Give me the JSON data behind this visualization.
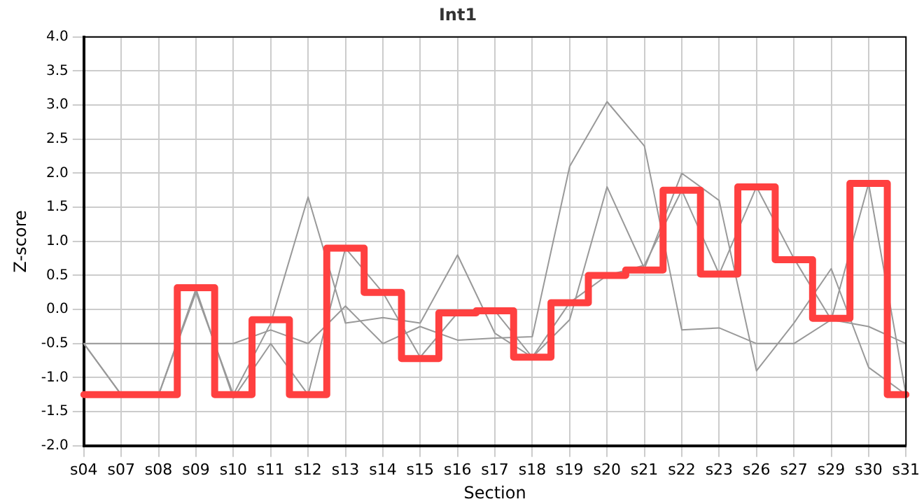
{
  "chart_data": {
    "type": "line",
    "title": "Int1",
    "xlabel": "Section",
    "ylabel": "Z-score",
    "categories": [
      "s04",
      "s07",
      "s08",
      "s09",
      "s10",
      "s11",
      "s12",
      "s13",
      "s14",
      "s15",
      "s16",
      "s17",
      "s18",
      "s19",
      "s20",
      "s21",
      "s22",
      "s23",
      "s26",
      "s27",
      "s29",
      "s30",
      "s31"
    ],
    "series": [
      {
        "type": "line",
        "color": "#999999",
        "values": [
          -0.5,
          -0.5,
          -0.5,
          -0.5,
          -0.5,
          -0.3,
          -0.5,
          0.05,
          -0.5,
          -0.25,
          -0.45,
          -0.42,
          -0.4,
          2.1,
          3.05,
          2.4,
          -0.3,
          -0.27,
          -0.5,
          -0.5,
          -0.15,
          -0.25,
          -0.5
        ]
      },
      {
        "type": "line",
        "color": "#999999",
        "values": [
          -0.5,
          -1.25,
          -1.25,
          0.25,
          -1.25,
          -0.2,
          1.65,
          -0.2,
          -0.12,
          -0.2,
          0.8,
          -0.35,
          -0.7,
          -0.15,
          1.8,
          0.6,
          2.0,
          1.6,
          -0.9,
          -0.2,
          0.6,
          -0.85,
          -1.25
        ]
      },
      {
        "type": "line",
        "color": "#999999",
        "values": [
          -0.5,
          -1.25,
          -1.25,
          0.3,
          -1.3,
          -0.5,
          -1.25,
          0.9,
          0.25,
          -0.7,
          -0.05,
          -0.02,
          -0.7,
          0.1,
          0.5,
          0.65,
          1.75,
          0.52,
          1.8,
          0.75,
          -0.15,
          1.85,
          -1.25
        ]
      },
      {
        "type": "step",
        "color": "#ff4040",
        "values": [
          -1.25,
          -1.25,
          -1.25,
          0.32,
          -1.25,
          -0.15,
          -1.25,
          0.9,
          0.25,
          -0.72,
          -0.05,
          -0.02,
          -0.7,
          0.1,
          0.5,
          0.58,
          1.75,
          0.52,
          1.8,
          0.73,
          -0.13,
          1.85,
          -1.25
        ]
      }
    ],
    "ylim": [
      -2,
      4
    ],
    "yticks": [
      {
        "value": -2,
        "label": "-2.0"
      },
      -1.5,
      {
        "value": -1,
        "label": "-1.0"
      },
      -0.5,
      {
        "value": 0,
        "label": "0.0"
      },
      0.5,
      {
        "value": 1,
        "label": "1.0"
      },
      1.5,
      {
        "value": 2,
        "label": "2.0"
      },
      2.5,
      {
        "value": 3,
        "label": "3.0"
      },
      3.5,
      {
        "value": 4,
        "label": "4.0"
      }
    ],
    "grid": true,
    "legend": false,
    "marker": "none",
    "line_style": "solid"
  }
}
